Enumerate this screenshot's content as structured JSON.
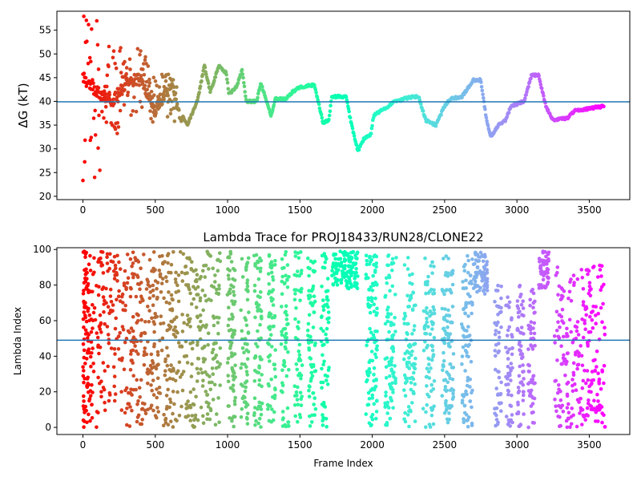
{
  "chart_data": [
    {
      "type": "scatter",
      "title": "",
      "xlabel": "",
      "ylabel": "ΔG (kT)",
      "xlim": [
        -180,
        3780
      ],
      "ylim": [
        19.3,
        59.0
      ],
      "xticks": [
        0,
        500,
        1000,
        1500,
        2000,
        2500,
        3000,
        3500
      ],
      "yticks": [
        20,
        25,
        30,
        35,
        40,
        45,
        50,
        55
      ],
      "hline": 39.9,
      "hline_color": "#1f77b4",
      "colormap": "rainbow (red at frame 0 → violet at frame 3600)",
      "trace_segments": [
        {
          "x": 0,
          "y": 45
        },
        {
          "x": 100,
          "y": 42
        },
        {
          "x": 200,
          "y": 40
        },
        {
          "x": 300,
          "y": 44
        },
        {
          "x": 400,
          "y": 45
        },
        {
          "x": 500,
          "y": 38
        },
        {
          "x": 560,
          "y": 41
        },
        {
          "x": 620,
          "y": 44
        },
        {
          "x": 660,
          "y": 38
        },
        {
          "x": 720,
          "y": 35
        },
        {
          "x": 790,
          "y": 40
        },
        {
          "x": 840,
          "y": 47.5
        },
        {
          "x": 880,
          "y": 42
        },
        {
          "x": 940,
          "y": 47.5
        },
        {
          "x": 990,
          "y": 46
        },
        {
          "x": 1010,
          "y": 41.5
        },
        {
          "x": 1060,
          "y": 43
        },
        {
          "x": 1100,
          "y": 46.5
        },
        {
          "x": 1130,
          "y": 40
        },
        {
          "x": 1200,
          "y": 40
        },
        {
          "x": 1230,
          "y": 43.8
        },
        {
          "x": 1270,
          "y": 40
        },
        {
          "x": 1300,
          "y": 37
        },
        {
          "x": 1330,
          "y": 40.5
        },
        {
          "x": 1400,
          "y": 40.5
        },
        {
          "x": 1450,
          "y": 42
        },
        {
          "x": 1500,
          "y": 43
        },
        {
          "x": 1600,
          "y": 43.5
        },
        {
          "x": 1660,
          "y": 35.5
        },
        {
          "x": 1700,
          "y": 36
        },
        {
          "x": 1720,
          "y": 41
        },
        {
          "x": 1820,
          "y": 41
        },
        {
          "x": 1850,
          "y": 36
        },
        {
          "x": 1900,
          "y": 29.5
        },
        {
          "x": 1940,
          "y": 32
        },
        {
          "x": 1990,
          "y": 33
        },
        {
          "x": 2010,
          "y": 37
        },
        {
          "x": 2060,
          "y": 38
        },
        {
          "x": 2160,
          "y": 40
        },
        {
          "x": 2280,
          "y": 41
        },
        {
          "x": 2320,
          "y": 41
        },
        {
          "x": 2370,
          "y": 36
        },
        {
          "x": 2440,
          "y": 35
        },
        {
          "x": 2500,
          "y": 39
        },
        {
          "x": 2540,
          "y": 40.5
        },
        {
          "x": 2620,
          "y": 41
        },
        {
          "x": 2700,
          "y": 44.5
        },
        {
          "x": 2750,
          "y": 44.5
        },
        {
          "x": 2790,
          "y": 36
        },
        {
          "x": 2820,
          "y": 32.5
        },
        {
          "x": 2870,
          "y": 35
        },
        {
          "x": 2920,
          "y": 36
        },
        {
          "x": 2960,
          "y": 39
        },
        {
          "x": 3050,
          "y": 40
        },
        {
          "x": 3100,
          "y": 45.5
        },
        {
          "x": 3150,
          "y": 45.5
        },
        {
          "x": 3200,
          "y": 39
        },
        {
          "x": 3250,
          "y": 36
        },
        {
          "x": 3350,
          "y": 36.5
        },
        {
          "x": 3400,
          "y": 38
        },
        {
          "x": 3600,
          "y": 39
        }
      ],
      "noise": [
        {
          "x_max": 50,
          "y_min": 20,
          "y_max": 58.5
        },
        {
          "x_max": 120,
          "y_min": 23,
          "y_max": 58
        },
        {
          "x_max": 250,
          "y_min": 32,
          "y_max": 55
        },
        {
          "x_max": 450,
          "y_min": 37,
          "y_max": 52
        },
        {
          "x_max": 650,
          "y_min": 35,
          "y_max": 46
        }
      ]
    },
    {
      "type": "scatter",
      "title": "Lambda Trace for PROJ18433/RUN28/CLONE22",
      "xlabel": "Frame Index",
      "ylabel": "Lambda Index",
      "xlim": [
        -180,
        3780
      ],
      "ylim": [
        -4,
        101
      ],
      "xticks": [
        0,
        500,
        1000,
        1500,
        2000,
        2500,
        3000,
        3500
      ],
      "yticks": [
        0,
        20,
        40,
        60,
        80,
        100
      ],
      "hline": 49,
      "hline_color": "#1f77b4",
      "colormap": "rainbow (red at frame 0 → violet at frame 3600)",
      "clusters": [
        {
          "x_start": 0,
          "x_end": 950,
          "y_min": 0,
          "y_max": 99
        },
        {
          "x_start": 980,
          "x_end": 1720,
          "y_min": 0,
          "y_max": 99,
          "bands": 8
        },
        {
          "x_start": 1720,
          "x_end": 1900,
          "y_min": 78,
          "y_max": 99
        },
        {
          "x_start": 1930,
          "x_end": 2720,
          "y_min": 0,
          "y_max": 97,
          "bands": 6
        },
        {
          "x_start": 2700,
          "x_end": 2800,
          "y_min": 75,
          "y_max": 99
        },
        {
          "x_start": 2830,
          "x_end": 3140,
          "y_min": 0,
          "y_max": 80,
          "bands": 4
        },
        {
          "x_start": 3150,
          "x_end": 3220,
          "y_min": 78,
          "y_max": 99
        },
        {
          "x_start": 3260,
          "x_end": 3610,
          "y_min": 0,
          "y_max": 92
        }
      ]
    }
  ]
}
